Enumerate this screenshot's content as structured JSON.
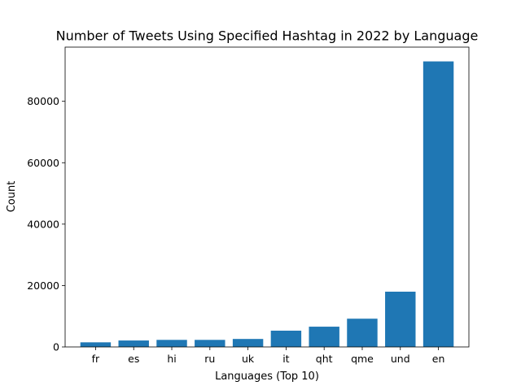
{
  "chart_data": {
    "type": "bar",
    "title": "Number of Tweets Using Specified Hashtag in 2022 by Language",
    "xlabel": "Languages (Top 10)",
    "ylabel": "Count",
    "categories": [
      "fr",
      "es",
      "hi",
      "ru",
      "uk",
      "it",
      "qht",
      "qme",
      "und",
      "en"
    ],
    "values": [
      1500,
      2100,
      2300,
      2300,
      2600,
      5300,
      6600,
      9200,
      18000,
      93000
    ],
    "ylim": [
      0,
      97650
    ],
    "yticks": [
      0,
      20000,
      40000,
      60000,
      80000
    ],
    "ytick_labels": [
      "0",
      "20000",
      "40000",
      "60000",
      "80000"
    ],
    "bar_color": "#1f77b4",
    "grid": false,
    "legend": "none"
  }
}
